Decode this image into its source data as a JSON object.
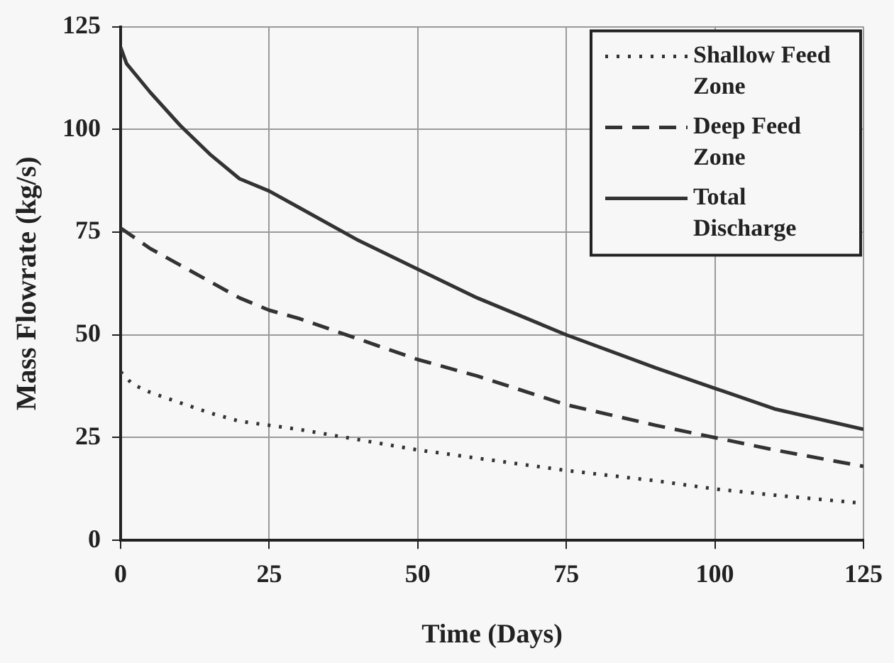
{
  "chart_data": {
    "type": "line",
    "xlabel": "Time (Days)",
    "ylabel": "Mass Flowrate (kg/s)",
    "xlim": [
      0,
      125
    ],
    "xticks": [
      0,
      25,
      50,
      75,
      100,
      125
    ],
    "ylim": [
      0,
      125
    ],
    "yticks": [
      0,
      25,
      50,
      75,
      100,
      125
    ],
    "grid": true,
    "legend": "top right",
    "marker": "none",
    "series": [
      {
        "name": "Shallow Feed Zone",
        "color": "#333333",
        "line_style": "dotted",
        "x": [
          0,
          2,
          5,
          10,
          15,
          20,
          25,
          30,
          40,
          50,
          60,
          75,
          90,
          100,
          110,
          125
        ],
        "values": [
          41,
          38,
          36,
          33.5,
          31,
          29,
          28,
          27,
          24.5,
          22,
          20,
          17,
          14.5,
          12.5,
          11,
          9
        ]
      },
      {
        "name": "Deep Feed Zone",
        "color": "#333333",
        "line_style": "dashed",
        "x": [
          0,
          5,
          10,
          15,
          20,
          25,
          30,
          40,
          50,
          60,
          75,
          90,
          100,
          110,
          125
        ],
        "values": [
          76,
          71,
          67,
          63,
          59,
          56,
          54,
          49,
          44,
          40,
          33,
          28,
          25,
          22,
          18
        ]
      },
      {
        "name": "Total Discharge",
        "color": "#333333",
        "line_style": "solid",
        "x": [
          0,
          1,
          5,
          10,
          15,
          20,
          25,
          30,
          40,
          50,
          60,
          75,
          90,
          100,
          110,
          125
        ],
        "values": [
          120,
          116,
          109,
          101,
          94,
          88,
          85,
          81,
          73,
          66,
          59,
          50,
          42,
          37,
          32,
          27
        ]
      }
    ]
  }
}
